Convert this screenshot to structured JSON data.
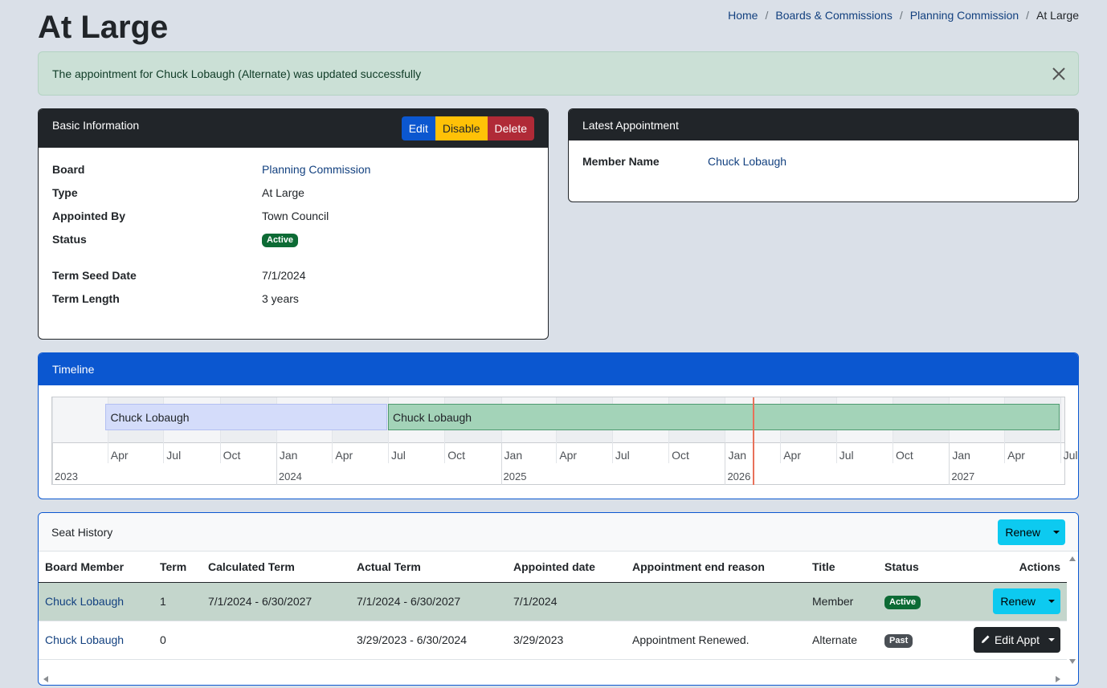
{
  "page": {
    "title": "At Large"
  },
  "breadcrumb": [
    {
      "label": "Home"
    },
    {
      "label": "Boards & Commissions"
    },
    {
      "label": "Planning Commission"
    },
    {
      "label": "At Large"
    }
  ],
  "alert": {
    "message": "The appointment for Chuck Lobaugh (Alternate) was updated successfully"
  },
  "basic_info": {
    "header": "Basic Information",
    "buttons": {
      "edit": "Edit",
      "disable": "Disable",
      "delete": "Delete"
    },
    "fields": {
      "board": {
        "label": "Board",
        "value": "Planning Commission"
      },
      "type": {
        "label": "Type",
        "value": "At Large"
      },
      "appointed_by": {
        "label": "Appointed By",
        "value": "Town Council"
      },
      "status": {
        "label": "Status",
        "value": "Active"
      },
      "term_seed_date": {
        "label": "Term Seed Date",
        "value": "7/1/2024"
      },
      "term_length": {
        "label": "Term Length",
        "value": "3 years"
      }
    }
  },
  "latest_appointment": {
    "header": "Latest Appointment",
    "member_name_label": "Member Name",
    "member_name": "Chuck Lobaugh"
  },
  "timeline": {
    "header": "Timeline",
    "bars": [
      {
        "label": "Chuck Lobaugh",
        "start": "2023-03-29",
        "end": "2024-06-30",
        "color": "#d4dcfa"
      },
      {
        "label": "Chuck Lobaugh",
        "start": "2024-07-01",
        "end": "2027-06-30",
        "color": "#a3d3b8"
      }
    ],
    "current_date": "2026-02-15",
    "months": [
      "Apr",
      "Jul",
      "Oct",
      "Jan",
      "Apr",
      "Jul",
      "Oct",
      "Jan",
      "Apr",
      "Jul",
      "Oct",
      "Jan",
      "Apr",
      "Jul",
      "Oct",
      "Jan",
      "Apr",
      "Jul"
    ],
    "years": [
      "2023",
      "2024",
      "2025",
      "2026",
      "2027"
    ]
  },
  "seat_history": {
    "header": "Seat History",
    "renew_label": "Renew",
    "columns": [
      "Board Member",
      "Term",
      "Calculated Term",
      "Actual Term",
      "Appointed date",
      "Appointment end reason",
      "Title",
      "Status",
      "Actions"
    ],
    "rows": [
      {
        "member": "Chuck Lobaugh",
        "term": "1",
        "calculated_term": "7/1/2024 - 6/30/2027",
        "actual_term": "7/1/2024 - 6/30/2027",
        "appointed_date": "7/1/2024",
        "end_reason": "",
        "title": "Member",
        "status": "Active",
        "action": "Renew"
      },
      {
        "member": "Chuck Lobaugh",
        "term": "0",
        "calculated_term": "",
        "actual_term": "3/29/2023 - 6/30/2024",
        "appointed_date": "3/29/2023",
        "end_reason": "Appointment Renewed.",
        "title": "Alternate",
        "status": "Past",
        "action": "Edit Appt"
      }
    ]
  },
  "colors": {
    "background": "#dae0e8",
    "primary": "#0b57d0",
    "success": "#0d6b35",
    "warning": "#ffc107",
    "danger": "#b02a37",
    "info": "#0dcaf0",
    "now_marker": "#e8715a"
  }
}
